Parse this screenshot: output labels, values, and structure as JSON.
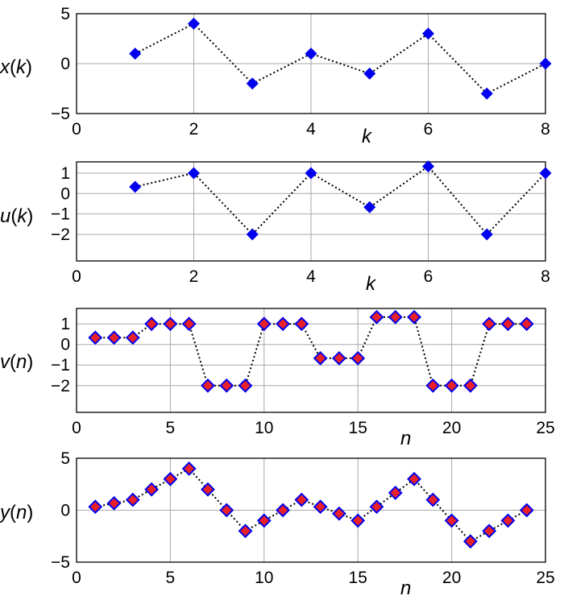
{
  "colors": {
    "marker_blue": "#0000ee",
    "marker_red": "#e8202a",
    "grid": "#a9a9a9",
    "line": "#000000"
  },
  "chart_data": [
    {
      "id": "x",
      "type": "line",
      "style": "dotted-line with diamond markers",
      "ylabel": "x(k)",
      "xlabel": "k",
      "xlim": [
        0,
        8
      ],
      "ylim": [
        -5,
        5
      ],
      "xticks": [
        0,
        2,
        4,
        6,
        8
      ],
      "yticks": [
        -5,
        0,
        5
      ],
      "ytick_labels": [
        "−5",
        "0",
        "5"
      ],
      "grid": true,
      "marker_fill": "#0000ee",
      "x": [
        1,
        2,
        3,
        4,
        5,
        6,
        7,
        8
      ],
      "y": [
        1,
        4,
        -2,
        1,
        -1,
        3,
        -3,
        0
      ]
    },
    {
      "id": "u",
      "type": "line",
      "style": "dotted-line with diamond markers",
      "ylabel": "u(k)",
      "xlabel": "k",
      "xlim": [
        0,
        8
      ],
      "ylim": [
        -3.3,
        1.55
      ],
      "xticks": [
        0,
        2,
        4,
        6,
        8
      ],
      "yticks": [
        -2,
        -1,
        0,
        1
      ],
      "ytick_labels": [
        "−2",
        "−1",
        "0",
        "1"
      ],
      "grid": true,
      "marker_fill": "#0000ee",
      "x": [
        1,
        2,
        3,
        4,
        5,
        6,
        7,
        8
      ],
      "y": [
        0.33,
        1,
        -2,
        1,
        -0.67,
        1.33,
        -2,
        1
      ]
    },
    {
      "id": "v",
      "type": "line",
      "style": "dotted-line with diamond markers (red fill, blue edge)",
      "ylabel": "v(n)",
      "xlabel": "n",
      "xlim": [
        0,
        25
      ],
      "ylim": [
        -3.3,
        1.75
      ],
      "xticks": [
        0,
        5,
        10,
        15,
        20,
        25
      ],
      "yticks": [
        -2,
        -1,
        0,
        1
      ],
      "ytick_labels": [
        "−2",
        "−1",
        "0",
        "1"
      ],
      "grid": true,
      "marker_fill": "#e8202a",
      "marker_edge": "#0000ee",
      "x": [
        1,
        2,
        3,
        4,
        5,
        6,
        7,
        8,
        9,
        10,
        11,
        12,
        13,
        14,
        15,
        16,
        17,
        18,
        19,
        20,
        21,
        22,
        23,
        24
      ],
      "y": [
        0.33,
        0.33,
        0.33,
        1,
        1,
        1,
        -2,
        -2,
        -2,
        1,
        1,
        1,
        -0.67,
        -0.67,
        -0.67,
        1.33,
        1.33,
        1.33,
        -2,
        -2,
        -2,
        1,
        1,
        1
      ]
    },
    {
      "id": "y",
      "type": "line",
      "style": "dotted-line with diamond markers (red fill, blue edge)",
      "ylabel": "y(n)",
      "xlabel": "n",
      "xlim": [
        0,
        25
      ],
      "ylim": [
        -5,
        5
      ],
      "xticks": [
        0,
        5,
        10,
        15,
        20,
        25
      ],
      "yticks": [
        -5,
        0,
        5
      ],
      "ytick_labels": [
        "−5",
        "0",
        "5"
      ],
      "grid": true,
      "marker_fill": "#e8202a",
      "marker_edge": "#0000ee",
      "x": [
        1,
        2,
        3,
        4,
        5,
        6,
        7,
        8,
        9,
        10,
        11,
        12,
        13,
        14,
        15,
        16,
        17,
        18,
        19,
        20,
        21,
        22,
        23,
        24
      ],
      "y": [
        0.33,
        0.67,
        1,
        2,
        3,
        4,
        2,
        0,
        -2,
        -1,
        0,
        1,
        0.33,
        -0.33,
        -1,
        0.33,
        1.67,
        3,
        1,
        -1,
        -3,
        -2,
        -1,
        0
      ]
    }
  ]
}
